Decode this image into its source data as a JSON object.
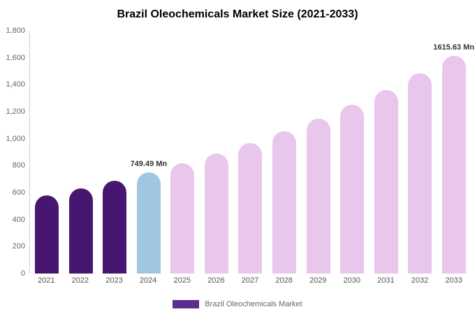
{
  "chart_data": {
    "type": "bar",
    "title": "Brazil Oleochemicals Market Size (2021-2033)",
    "categories": [
      "2021",
      "2022",
      "2023",
      "2024",
      "2025",
      "2026",
      "2027",
      "2028",
      "2029",
      "2030",
      "2031",
      "2032",
      "2033"
    ],
    "values": [
      580,
      632,
      688,
      749.49,
      816,
      889,
      968,
      1054,
      1148,
      1250,
      1361,
      1483,
      1615.63
    ],
    "bar_colors": [
      "#461670",
      "#461670",
      "#461670",
      "#9fc7e1",
      "#e9c6ec",
      "#e9c6ec",
      "#e9c6ec",
      "#e9c6ec",
      "#e9c6ec",
      "#e9c6ec",
      "#e9c6ec",
      "#e9c6ec",
      "#e9c6ec"
    ],
    "ylim": [
      0,
      1800
    ],
    "ytick_step": 200,
    "yticks": [
      "0",
      "200",
      "400",
      "600",
      "800",
      "1,000",
      "1,200",
      "1,400",
      "1,600",
      "1,800"
    ],
    "annotations": [
      {
        "index": 3,
        "label": "749.49 Mn"
      },
      {
        "index": 12,
        "label": "1615.63 Mn"
      }
    ],
    "legend": {
      "label": "Brazil Oleochemicals Market",
      "color": "#5b2d8f"
    },
    "grid": false,
    "legend_position": "bottom-center",
    "xlabel": "",
    "ylabel": ""
  }
}
